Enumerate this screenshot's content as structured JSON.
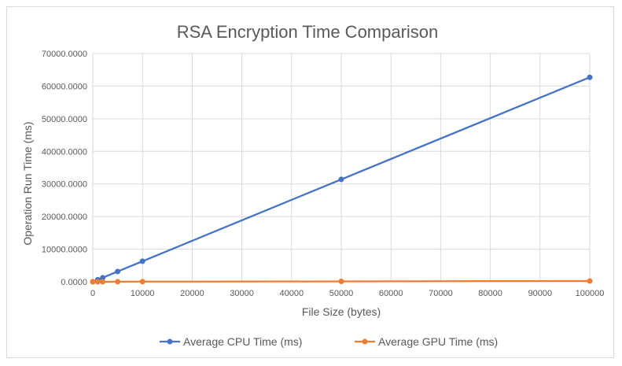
{
  "chart_data": {
    "type": "line",
    "title": "RSA Encryption Time Comparison",
    "xlabel": "File Size (bytes)",
    "ylabel": "Operation Run Time (ms)",
    "xlim": [
      0,
      100000
    ],
    "ylim": [
      0,
      70000
    ],
    "x_ticks": [
      "0",
      "10000",
      "20000",
      "30000",
      "40000",
      "50000",
      "60000",
      "70000",
      "80000",
      "90000",
      "100000"
    ],
    "y_ticks": [
      "0.0000",
      "10000.0000",
      "20000.0000",
      "30000.0000",
      "40000.0000",
      "50000.0000",
      "60000.0000",
      "70000.0000"
    ],
    "x_tick_values": [
      0,
      10000,
      20000,
      30000,
      40000,
      50000,
      60000,
      70000,
      80000,
      90000,
      100000
    ],
    "y_tick_values": [
      0,
      10000,
      20000,
      30000,
      40000,
      50000,
      60000,
      70000
    ],
    "grid": "vertical and horizontal",
    "legend_position": "bottom",
    "series": [
      {
        "name": "Average CPU Time (ms)",
        "color": "#4472c4",
        "points": [
          [
            0,
            0
          ],
          [
            1000,
            620
          ],
          [
            2000,
            1250
          ],
          [
            5000,
            3150
          ],
          [
            10000,
            6300
          ],
          [
            50000,
            31400
          ],
          [
            100000,
            62700
          ]
        ]
      },
      {
        "name": "Average GPU Time (ms)",
        "color": "#ed7d31",
        "points": [
          [
            0,
            0
          ],
          [
            1000,
            5
          ],
          [
            2000,
            10
          ],
          [
            5000,
            25
          ],
          [
            10000,
            50
          ],
          [
            50000,
            120
          ],
          [
            100000,
            230
          ]
        ]
      }
    ]
  }
}
